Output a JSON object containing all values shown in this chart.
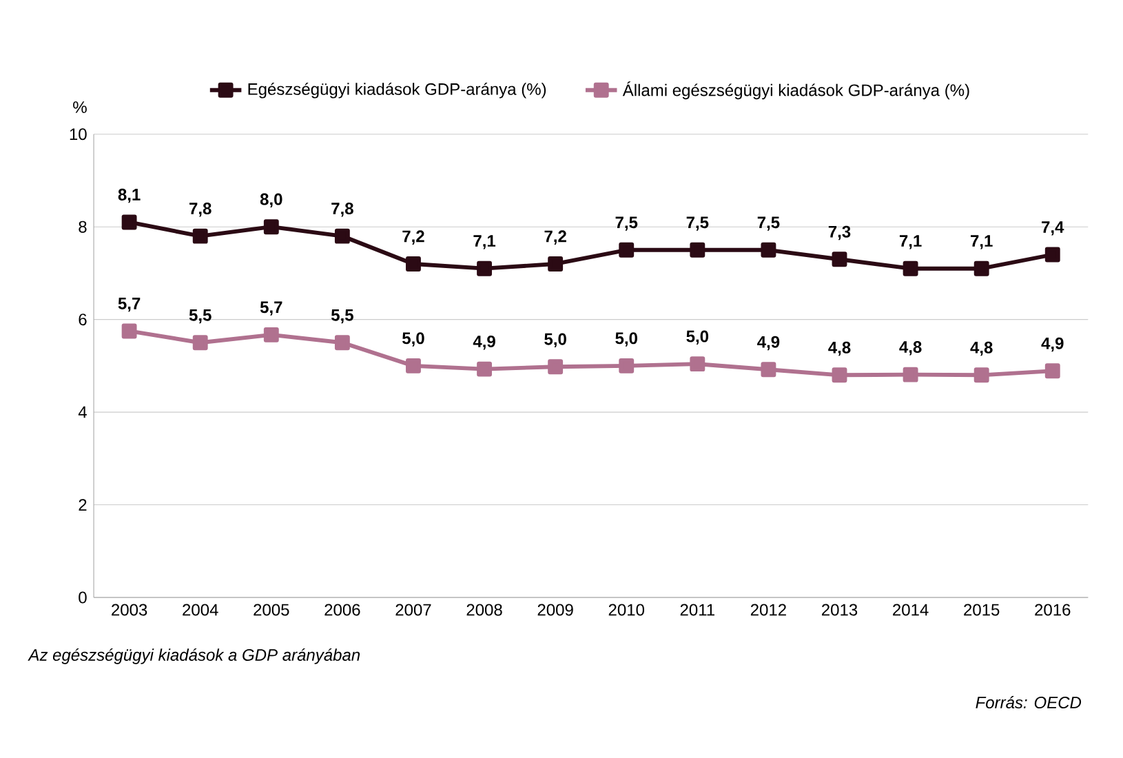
{
  "chart_data": {
    "type": "line",
    "categories": [
      "2003",
      "2004",
      "2005",
      "2006",
      "2007",
      "2008",
      "2009",
      "2010",
      "2011",
      "2012",
      "2013",
      "2014",
      "2015",
      "2016"
    ],
    "ylabel": "%",
    "ylim": [
      0,
      10
    ],
    "yticks": [
      0,
      2,
      4,
      6,
      8,
      10
    ],
    "grid": "y",
    "legend": "top",
    "marker": "square",
    "line_style": "solid",
    "series": [
      {
        "name": "Egészségügyi kiadások GDP-aránya (%)",
        "color": "#2b0a14",
        "values": [
          8.1,
          7.8,
          8.0,
          7.8,
          7.2,
          7.1,
          7.2,
          7.5,
          7.5,
          7.5,
          7.3,
          7.1,
          7.1,
          7.4
        ],
        "value_labels": [
          "8,1",
          "7,8",
          "8,0",
          "7,8",
          "7,2",
          "7,1",
          "7,2",
          "7,5",
          "7,5",
          "7,5",
          "7,3",
          "7,1",
          "7,1",
          "7,4"
        ]
      },
      {
        "name": "Állami egészségügyi kiadások GDP-aránya (%)",
        "color": "#b0718f",
        "values": [
          5.75,
          5.5,
          5.67,
          5.5,
          5.0,
          4.93,
          4.98,
          5.0,
          5.04,
          4.92,
          4.8,
          4.81,
          4.8,
          4.89
        ],
        "value_labels": [
          "5,7",
          "5,5",
          "5,7",
          "5,5",
          "5,0",
          "4,9",
          "5,0",
          "5,0",
          "5,0",
          "4,9",
          "4,8",
          "4,8",
          "4,8",
          "4,9"
        ]
      }
    ],
    "annotations": [
      "Az egészségügyi kiadások a GDP arányában",
      "Forrás: OECD"
    ]
  }
}
